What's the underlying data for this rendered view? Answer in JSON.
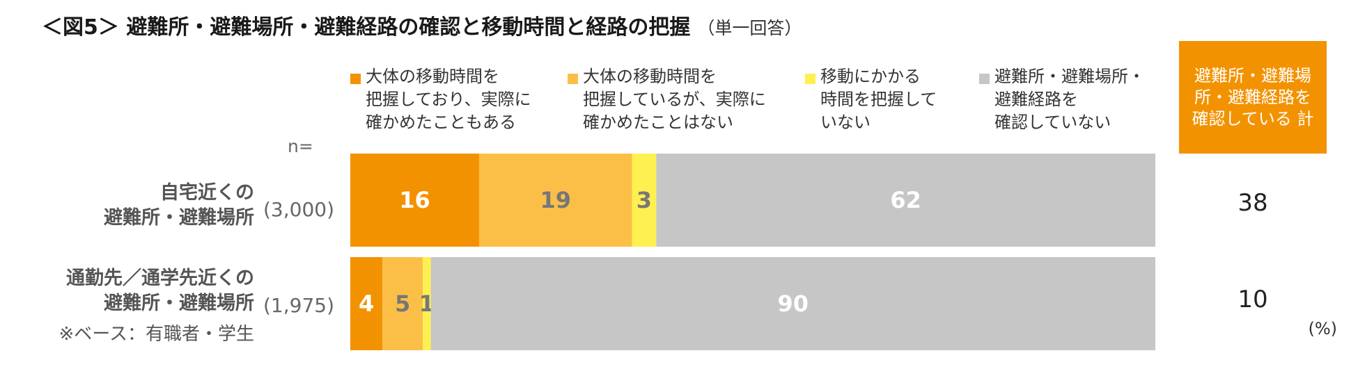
{
  "title": "＜図5＞ 避難所・避難場所・避難経路の確認と移動時間と経路の把握",
  "title_note": "（単一回答）",
  "legend": [
    {
      "label": "大体の移動時間を\n把握しており、実際に\n確かめたこともある",
      "color": "#f39200"
    },
    {
      "label": "大体の移動時間を\n把握しているが、実際に\n確かめたことはない",
      "color": "#fbbf48"
    },
    {
      "label": "移動にかかる\n時間を把握して\nいない",
      "color": "#fdf050"
    },
    {
      "label": "避難所・避難場所・\n避難経路を\n確認していない",
      "color": "#c6c6c6"
    }
  ],
  "total_header": "避難所・避難場\n所・避難経路を\n確認している 計",
  "n_label": "n=",
  "base_note": "※ベース：有職者・学生",
  "unit": "(%)",
  "rows": [
    {
      "label": "自宅近くの\n避難所・避難場所",
      "n": "(3,000)",
      "total": "38"
    },
    {
      "label": "通勤先／通学先近くの\n避難所・避難場所",
      "n": "(1,975)",
      "total": "10"
    }
  ],
  "chart_data": {
    "type": "bar",
    "orientation": "horizontal-stacked-100",
    "categories": [
      "自宅近くの避難所・避難場所",
      "通勤先／通学先近くの避難所・避難場所"
    ],
    "series": [
      {
        "name": "大体の移動時間を把握しており、実際に確かめたこともある",
        "values": [
          16,
          4
        ],
        "color": "#f39200",
        "label_color": "#ffffff"
      },
      {
        "name": "大体の移動時間を把握しているが、実際に確かめたことはない",
        "values": [
          19,
          5
        ],
        "color": "#fbbf48",
        "label_color": "#777777"
      },
      {
        "name": "移動にかかる時間を把握していない",
        "values": [
          3,
          1
        ],
        "color": "#fdf050",
        "label_color": "#777777"
      },
      {
        "name": "避難所・避難場所・避難経路を確認していない",
        "values": [
          62,
          90
        ],
        "color": "#c6c6c6",
        "label_color": "#ffffff"
      }
    ],
    "xlim": [
      0,
      100
    ]
  }
}
